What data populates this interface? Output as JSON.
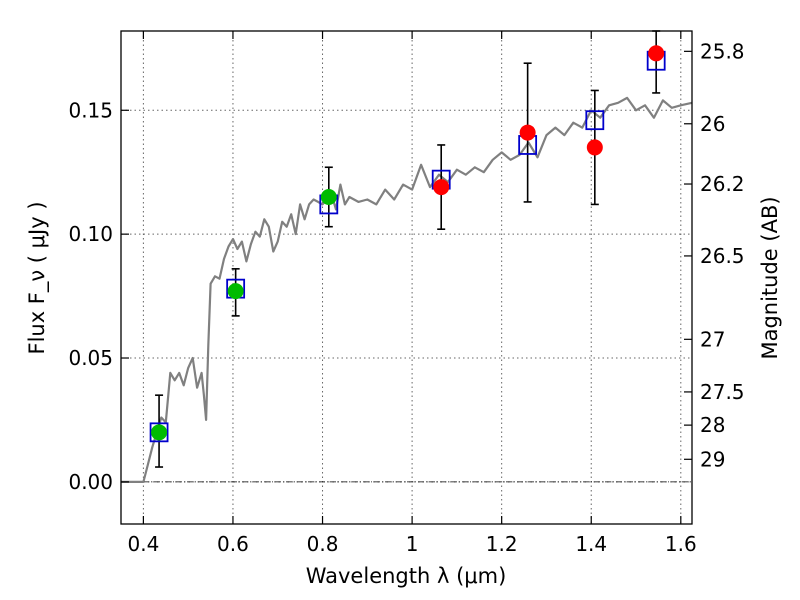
{
  "chart_data": {
    "type": "scatter",
    "xlabel": "Wavelength  λ (μm)",
    "ylabel": "Flux  F_ν  ( μJy )",
    "ylabel_right": "Magnitude (AB)",
    "xlim": [
      0.35,
      1.625
    ],
    "ylim": [
      -0.017,
      0.182
    ],
    "grid": true,
    "x_ticks": [
      {
        "value": 0.4,
        "label": "0.4"
      },
      {
        "value": 0.6,
        "label": "0.6"
      },
      {
        "value": 0.8,
        "label": "0.8"
      },
      {
        "value": 1.0,
        "label": "1"
      },
      {
        "value": 1.2,
        "label": "1.2"
      },
      {
        "value": 1.4,
        "label": "1.4"
      },
      {
        "value": 1.6,
        "label": "1.6"
      }
    ],
    "y_ticks": [
      {
        "value": 0.0,
        "label": "0.00"
      },
      {
        "value": 0.05,
        "label": "0.05"
      },
      {
        "value": 0.1,
        "label": "0.10"
      },
      {
        "value": 0.15,
        "label": "0.15"
      }
    ],
    "mag_ticks": [
      {
        "value": 25.8,
        "label": "25.8"
      },
      {
        "value": 26.0,
        "label": "26"
      },
      {
        "value": 26.2,
        "label": "26.2"
      },
      {
        "value": 26.5,
        "label": "26.5"
      },
      {
        "value": 27.0,
        "label": "27"
      },
      {
        "value": 27.5,
        "label": "27.5"
      },
      {
        "value": 28.0,
        "label": "28"
      },
      {
        "value": 29.0,
        "label": "29"
      }
    ],
    "colors": {
      "model": "#808080",
      "box": "#0000cc",
      "green": "#00bb00",
      "red": "#ff0000",
      "errorbar": "#000000",
      "grid": "#666666"
    },
    "model_spectrum": {
      "x": [
        0.35,
        0.4,
        0.41,
        0.42,
        0.43,
        0.44,
        0.45,
        0.46,
        0.47,
        0.48,
        0.49,
        0.5,
        0.51,
        0.52,
        0.53,
        0.535,
        0.54,
        0.545,
        0.55,
        0.56,
        0.57,
        0.58,
        0.59,
        0.6,
        0.61,
        0.62,
        0.63,
        0.64,
        0.65,
        0.66,
        0.67,
        0.68,
        0.69,
        0.7,
        0.71,
        0.72,
        0.73,
        0.74,
        0.75,
        0.76,
        0.77,
        0.78,
        0.79,
        0.8,
        0.81,
        0.82,
        0.83,
        0.84,
        0.85,
        0.86,
        0.88,
        0.9,
        0.92,
        0.94,
        0.96,
        0.98,
        1.0,
        1.02,
        1.04,
        1.06,
        1.08,
        1.1,
        1.12,
        1.14,
        1.16,
        1.18,
        1.2,
        1.22,
        1.24,
        1.26,
        1.28,
        1.3,
        1.32,
        1.34,
        1.36,
        1.38,
        1.4,
        1.42,
        1.44,
        1.46,
        1.48,
        1.5,
        1.52,
        1.54,
        1.56,
        1.58,
        1.6,
        1.625
      ],
      "y": [
        0.0,
        0.0,
        0.007,
        0.014,
        0.02,
        0.026,
        0.024,
        0.044,
        0.041,
        0.044,
        0.039,
        0.046,
        0.05,
        0.038,
        0.044,
        0.035,
        0.025,
        0.055,
        0.08,
        0.083,
        0.082,
        0.09,
        0.095,
        0.098,
        0.094,
        0.097,
        0.089,
        0.096,
        0.101,
        0.099,
        0.106,
        0.103,
        0.093,
        0.097,
        0.105,
        0.103,
        0.108,
        0.1,
        0.112,
        0.106,
        0.112,
        0.114,
        0.113,
        0.112,
        0.114,
        0.116,
        0.11,
        0.12,
        0.112,
        0.115,
        0.113,
        0.114,
        0.112,
        0.118,
        0.114,
        0.12,
        0.118,
        0.128,
        0.119,
        0.124,
        0.121,
        0.126,
        0.124,
        0.127,
        0.125,
        0.13,
        0.133,
        0.13,
        0.132,
        0.137,
        0.131,
        0.14,
        0.143,
        0.14,
        0.145,
        0.143,
        0.15,
        0.147,
        0.152,
        0.153,
        0.155,
        0.15,
        0.152,
        0.147,
        0.154,
        0.151,
        0.152,
        0.153
      ]
    },
    "observed": [
      {
        "x": 0.435,
        "y": 0.02,
        "yerr_low": 0.014,
        "yerr_high": 0.015,
        "color": "green"
      },
      {
        "x": 0.606,
        "y": 0.077,
        "yerr_low": 0.01,
        "yerr_high": 0.009,
        "color": "green"
      },
      {
        "x": 0.814,
        "y": 0.115,
        "yerr_low": 0.012,
        "yerr_high": 0.012,
        "color": "green"
      },
      {
        "x": 1.065,
        "y": 0.119,
        "yerr_low": 0.017,
        "yerr_high": 0.017,
        "color": "red"
      },
      {
        "x": 1.258,
        "y": 0.141,
        "yerr_low": 0.028,
        "yerr_high": 0.028,
        "color": "red"
      },
      {
        "x": 1.408,
        "y": 0.135,
        "yerr_low": 0.023,
        "yerr_high": 0.023,
        "color": "red"
      },
      {
        "x": 1.545,
        "y": 0.173,
        "yerr_low": 0.016,
        "yerr_high": 0.009,
        "color": "red"
      }
    ],
    "model_photometry": [
      {
        "x": 0.435,
        "y": 0.02
      },
      {
        "x": 0.606,
        "y": 0.078
      },
      {
        "x": 0.814,
        "y": 0.112
      },
      {
        "x": 1.065,
        "y": 0.122
      },
      {
        "x": 1.258,
        "y": 0.136
      },
      {
        "x": 1.408,
        "y": 0.146
      },
      {
        "x": 1.545,
        "y": 0.17
      }
    ]
  }
}
